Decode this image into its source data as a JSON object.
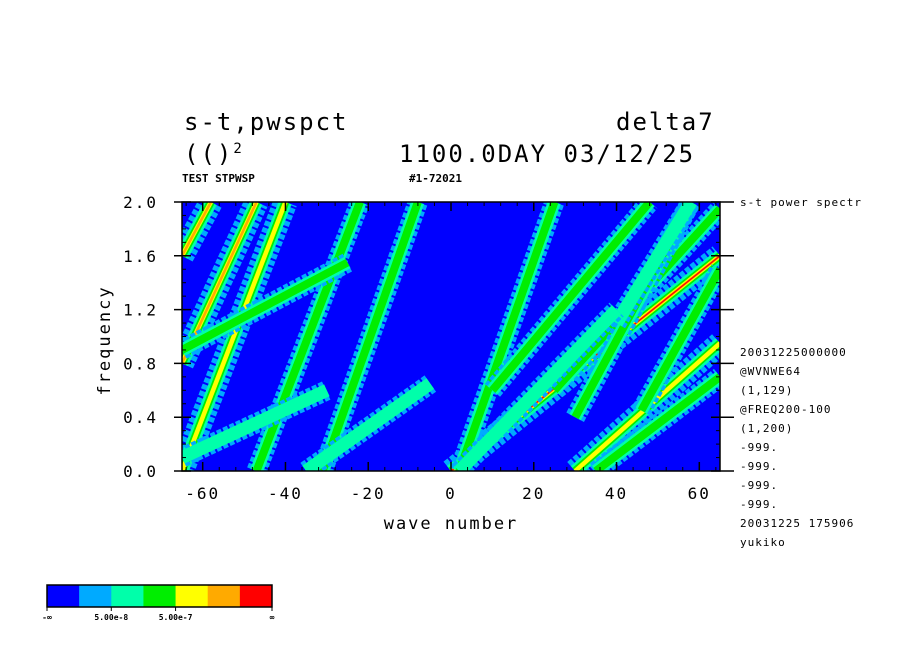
{
  "header": {
    "title_left": "s-t,pwspct",
    "title_right": "delta7",
    "subtitle_left": "(()",
    "subtitle_left_sup": "2",
    "subtitle_right": "1100.0DAY 03/12/25",
    "test_label": "TEST STPWSP",
    "run_id": "#1-72021"
  },
  "side_info": {
    "top_label": "s-t power spectr",
    "lines": [
      "20031225000000",
      "@WVNWE64",
      "(1,129)",
      "@FREQ200-100",
      "(1,200)",
      "-999.",
      "-999.",
      "-999.",
      "-999.",
      "20031225 175906",
      "yukiko"
    ]
  },
  "chart_data": {
    "type": "heatmap",
    "xlabel": "wave number",
    "ylabel": "frequency",
    "xlim": [
      -65,
      65
    ],
    "ylim": [
      0.0,
      2.0
    ],
    "xticks": [
      -60,
      -40,
      -20,
      0,
      20,
      40,
      60
    ],
    "xtick_labels": [
      "-60",
      "-40",
      "-20",
      "0",
      "20",
      "40",
      "60"
    ],
    "yticks": [
      0.0,
      0.4,
      0.8,
      1.2,
      1.6,
      2.0
    ],
    "ytick_labels": [
      "0.0",
      "0.4",
      "0.8",
      "1.2",
      "1.6",
      "2.0"
    ],
    "background_level": 0,
    "ridges": [
      {
        "x0": 0,
        "y0": 0.0,
        "x1": 65,
        "y1": 1.6,
        "peak": 6
      },
      {
        "x0": -65,
        "y0": 0.8,
        "x1": -47,
        "y1": 2.0,
        "peak": 5
      },
      {
        "x0": -65,
        "y0": 1.6,
        "x1": -58,
        "y1": 2.0,
        "peak": 5
      },
      {
        "x0": -65,
        "y0": 0.0,
        "x1": -40,
        "y1": 2.0,
        "peak": 4
      },
      {
        "x0": -47,
        "y0": 0.0,
        "x1": -22,
        "y1": 2.0,
        "peak": 3
      },
      {
        "x0": -31,
        "y0": 0.0,
        "x1": -8,
        "y1": 2.0,
        "peak": 3
      },
      {
        "x0": -65,
        "y0": 0.9,
        "x1": -25,
        "y1": 1.55,
        "peak": 3
      },
      {
        "x0": -65,
        "y0": 0.1,
        "x1": -30,
        "y1": 0.6,
        "peak": 2
      },
      {
        "x0": -35,
        "y0": 0.0,
        "x1": -5,
        "y1": 0.65,
        "peak": 2
      },
      {
        "x0": 2,
        "y0": 0.0,
        "x1": 25,
        "y1": 2.0,
        "peak": 3
      },
      {
        "x0": 30,
        "y0": 0.0,
        "x1": 65,
        "y1": 0.95,
        "peak": 4
      },
      {
        "x0": 35,
        "y0": 0.0,
        "x1": 65,
        "y1": 0.7,
        "peak": 3
      },
      {
        "x0": 10,
        "y0": 0.6,
        "x1": 48,
        "y1": 2.0,
        "peak": 3
      },
      {
        "x0": 25,
        "y0": 0.6,
        "x1": 65,
        "y1": 1.95,
        "peak": 3
      },
      {
        "x0": 30,
        "y0": 0.4,
        "x1": 58,
        "y1": 2.0,
        "peak": 3
      },
      {
        "x0": 46,
        "y0": 0.45,
        "x1": 65,
        "y1": 1.5,
        "peak": 3
      },
      {
        "x0": 40,
        "y0": 1.1,
        "x1": 58,
        "y1": 2.0,
        "peak": 2
      },
      {
        "x0": 2,
        "y0": 0.0,
        "x1": 40,
        "y1": 1.2,
        "peak": 2
      }
    ],
    "colorbar": {
      "colors": [
        "#0000ff",
        "#00aaff",
        "#00ffaa",
        "#00ee00",
        "#ffff00",
        "#ffaa00",
        "#ff0000"
      ],
      "tick_labels": [
        "-∞",
        "5.00e-8",
        "5.00e-7",
        "∞"
      ]
    }
  }
}
